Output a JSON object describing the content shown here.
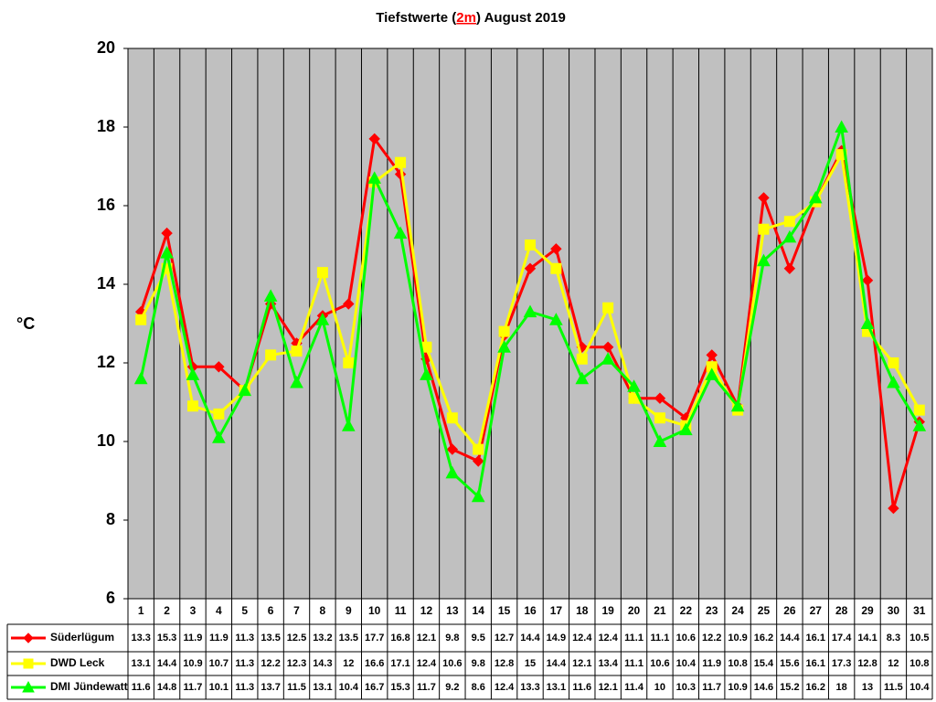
{
  "chart_data": {
    "type": "line",
    "title": [
      "Tiefstwerte (",
      "2m",
      ") August 2019"
    ],
    "title_highlight_color": "#ff0000",
    "y_label": "°C",
    "categories": [
      "1",
      "2",
      "3",
      "4",
      "5",
      "6",
      "7",
      "8",
      "9",
      "10",
      "11",
      "12",
      "13",
      "14",
      "15",
      "16",
      "17",
      "18",
      "19",
      "20",
      "21",
      "22",
      "23",
      "24",
      "25",
      "26",
      "27",
      "28",
      "29",
      "30",
      "31"
    ],
    "ylim": [
      6,
      20
    ],
    "yticks": [
      6,
      8,
      10,
      12,
      14,
      16,
      18,
      20
    ],
    "grid": "vertical",
    "background": "#c0c0c0",
    "series": [
      {
        "name": "Süderlügum",
        "color": "#ff0000",
        "marker": "diamond",
        "values": [
          13.3,
          15.3,
          11.9,
          11.9,
          11.3,
          13.5,
          12.5,
          13.2,
          13.5,
          17.7,
          16.8,
          12.1,
          9.8,
          9.5,
          12.7,
          14.4,
          14.9,
          12.4,
          12.4,
          11.1,
          11.1,
          10.6,
          12.2,
          10.9,
          16.2,
          14.4,
          16.1,
          17.4,
          14.1,
          8.3,
          10.5
        ]
      },
      {
        "name": "DWD Leck",
        "color": "#ffff00",
        "marker": "square",
        "values": [
          13.1,
          14.4,
          10.9,
          10.7,
          11.3,
          12.2,
          12.3,
          14.3,
          12,
          16.6,
          17.1,
          12.4,
          10.6,
          9.8,
          12.8,
          15,
          14.4,
          12.1,
          13.4,
          11.1,
          10.6,
          10.4,
          11.9,
          10.8,
          15.4,
          15.6,
          16.1,
          17.3,
          12.8,
          12,
          10.8
        ]
      },
      {
        "name": "DMI Jündewatt",
        "color": "#00ff00",
        "marker": "triangle",
        "values": [
          11.6,
          14.8,
          11.7,
          10.1,
          11.3,
          13.7,
          11.5,
          13.1,
          10.4,
          16.7,
          15.3,
          11.7,
          9.2,
          8.6,
          12.4,
          13.3,
          13.1,
          11.6,
          12.1,
          11.4,
          10,
          10.3,
          11.7,
          10.9,
          14.6,
          15.2,
          16.2,
          18,
          13,
          11.5,
          10.4
        ]
      }
    ]
  }
}
